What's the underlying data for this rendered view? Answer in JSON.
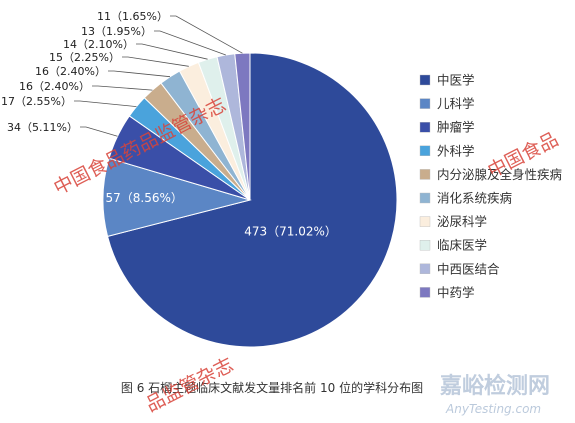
{
  "chart_data": {
    "type": "pie",
    "categories": [
      "中医学",
      "儿科学",
      "肿瘤学",
      "外科学",
      "内分泌腺及全身性疾病",
      "消化系统疾病",
      "泌尿科学",
      "临床医学",
      "中西医结合",
      "中药学"
    ],
    "values": [
      473,
      57,
      34,
      17,
      16,
      16,
      15,
      14,
      13,
      11
    ],
    "percents": [
      "71.02%",
      "8.56%",
      "5.11%",
      "2.55%",
      "2.40%",
      "2.40%",
      "2.25%",
      "2.10%",
      "1.95%",
      "1.65%"
    ],
    "slice_labels": [
      "473（71.02%）",
      "57（8.56%）",
      "34（5.11%）",
      "17（2.55%）",
      "16（2.40%）",
      "16（2.40%）",
      "15（2.25%）",
      "14（2.10%）",
      "13（1.95%）",
      "11（1.65%）"
    ],
    "colors": [
      "#2e4a9a",
      "#5b86c5",
      "#3a4fa8",
      "#4aa3dc",
      "#c9ad8d",
      "#8fb4d2",
      "#fbeede",
      "#dff0ec",
      "#aeb7db",
      "#7d78c0"
    ],
    "legend_position": "right",
    "caption": "图 6   石榴主题临床文献发文量排名前 10 位的学科分布图"
  },
  "watermarks": {
    "journal_1": "中国食品药品监管杂志",
    "journal_2": "中国食品",
    "journal_3": "品监管杂志",
    "site_name": "嘉峪检测网",
    "site_url": "AnyTesting.com"
  }
}
